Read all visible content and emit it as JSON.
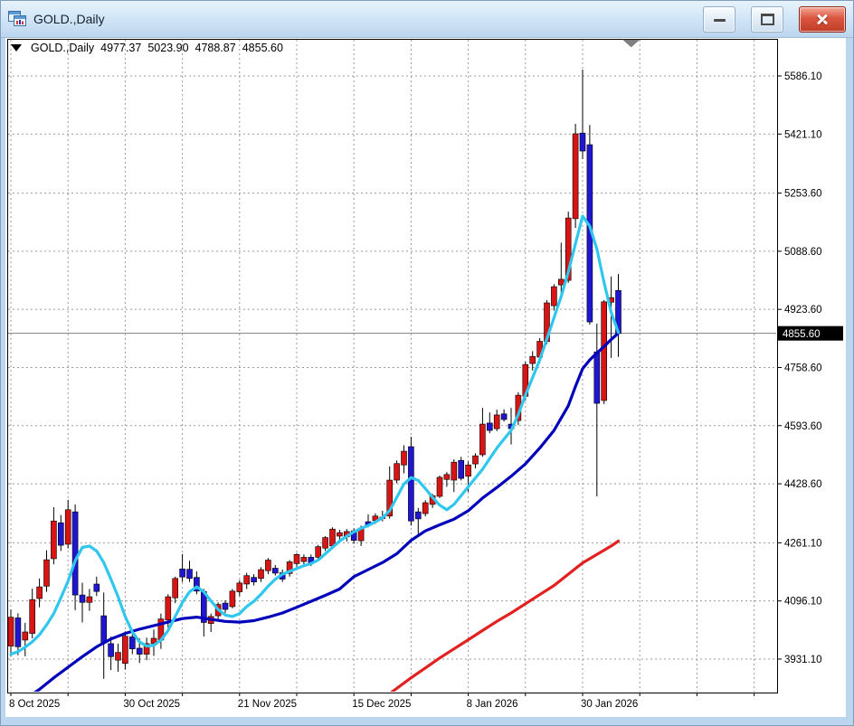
{
  "window": {
    "title": "GOLD.,Daily"
  },
  "header": {
    "symbol_period": "GOLD.,Daily",
    "open": "4977.37",
    "high": "5023.90",
    "low": "4788.87",
    "close": "4855.60"
  },
  "price_axis": {
    "labels": [
      "5586.10",
      "5421.10",
      "5253.60",
      "5088.60",
      "4923.60",
      "4758.60",
      "4593.60",
      "4428.60",
      "4261.10",
      "4096.10",
      "3931.10"
    ],
    "current_price_label": "4855.60"
  },
  "time_axis": {
    "labels": [
      "8 Oct 2025",
      "30 Oct 2025",
      "21 Nov 2025",
      "15 Dec 2025",
      "8 Jan 2026",
      "30 Jan 2026"
    ]
  },
  "chart_data": {
    "type": "candlestick",
    "symbol": "GOLD.",
    "timeframe": "Daily",
    "title": "GOLD.,Daily",
    "current_price": 4855.6,
    "last_bar": {
      "open": 4977.37,
      "high": 5023.9,
      "low": 4788.87,
      "close": 4855.6
    },
    "visible_price_range": [
      3836,
      5691
    ],
    "y_axis_ticks": [
      5586.1,
      5421.1,
      5253.6,
      5088.6,
      4923.6,
      4758.6,
      4593.6,
      4428.6,
      4261.1,
      4096.1,
      3931.1
    ],
    "x_axis_dates": [
      "8 Oct 2025",
      "30 Oct 2025",
      "21 Nov 2025",
      "15 Dec 2025",
      "8 Jan 2026",
      "30 Jan 2026"
    ],
    "date_bar_indices": [
      0,
      16,
      32,
      48,
      64,
      80
    ],
    "grid_bar_step": 8,
    "bars": [
      [
        3968,
        4072,
        3938,
        4050
      ],
      [
        4048,
        4061,
        3942,
        3966
      ],
      [
        3985,
        4034,
        3939,
        4008
      ],
      [
        4004,
        4131,
        3990,
        4100
      ],
      [
        4103,
        4160,
        4078,
        4136
      ],
      [
        4138,
        4240,
        4122,
        4213
      ],
      [
        4216,
        4362,
        4200,
        4323
      ],
      [
        4318,
        4340,
        4238,
        4254
      ],
      [
        4257,
        4383,
        4245,
        4355
      ],
      [
        4349,
        4370,
        4070,
        4113
      ],
      [
        4113,
        4148,
        4035,
        4092
      ],
      [
        4092,
        4130,
        4068,
        4108
      ],
      [
        4144,
        4165,
        4110,
        4123
      ],
      [
        4054,
        4120,
        3875,
        3977
      ],
      [
        3975,
        3995,
        3900,
        3938
      ],
      [
        3928,
        3975,
        3895,
        3950
      ],
      [
        3919,
        4010,
        3902,
        3996
      ],
      [
        3994,
        4008,
        3945,
        3960
      ],
      [
        3962,
        3990,
        3920,
        3945
      ],
      [
        3945,
        3992,
        3928,
        3975
      ],
      [
        3975,
        4015,
        3940,
        3990
      ],
      [
        3985,
        4060,
        3960,
        4045
      ],
      [
        4042,
        4115,
        4020,
        4108
      ],
      [
        4105,
        4165,
        4090,
        4160
      ],
      [
        4187,
        4229,
        4150,
        4164
      ],
      [
        4186,
        4210,
        4150,
        4160
      ],
      [
        4163,
        4180,
        4115,
        4124
      ],
      [
        4123,
        4130,
        3995,
        4035
      ],
      [
        4032,
        4060,
        4008,
        4052
      ],
      [
        4054,
        4092,
        4040,
        4086
      ],
      [
        4090,
        4098,
        4062,
        4072
      ],
      [
        4080,
        4130,
        4075,
        4124
      ],
      [
        4122,
        4155,
        4110,
        4147
      ],
      [
        4144,
        4176,
        4130,
        4168
      ],
      [
        4163,
        4172,
        4140,
        4150
      ],
      [
        4160,
        4192,
        4150,
        4185
      ],
      [
        4182,
        4218,
        4172,
        4212
      ],
      [
        4189,
        4198,
        4168,
        4175
      ],
      [
        4176,
        4185,
        4150,
        4158
      ],
      [
        4174,
        4212,
        4165,
        4207
      ],
      [
        4202,
        4232,
        4192,
        4228
      ],
      [
        4208,
        4228,
        4198,
        4220
      ],
      [
        4220,
        4228,
        4195,
        4204
      ],
      [
        4220,
        4255,
        4210,
        4250
      ],
      [
        4246,
        4280,
        4238,
        4276
      ],
      [
        4252,
        4305,
        4248,
        4300
      ],
      [
        4280,
        4298,
        4270,
        4290
      ],
      [
        4278,
        4300,
        4265,
        4293
      ],
      [
        4295,
        4302,
        4258,
        4268
      ],
      [
        4267,
        4310,
        4252,
        4303
      ],
      [
        4321,
        4342,
        4305,
        4311
      ],
      [
        4324,
        4345,
        4315,
        4337
      ],
      [
        4330,
        4352,
        4322,
        4334
      ],
      [
        4337,
        4478,
        4330,
        4439
      ],
      [
        4439,
        4495,
        4430,
        4486
      ],
      [
        4482,
        4538,
        4458,
        4521
      ],
      [
        4534,
        4562,
        4310,
        4323
      ],
      [
        4349,
        4360,
        4285,
        4329
      ],
      [
        4344,
        4382,
        4336,
        4375
      ],
      [
        4370,
        4400,
        4360,
        4395
      ],
      [
        4393,
        4452,
        4388,
        4447
      ],
      [
        4441,
        4462,
        4420,
        4455
      ],
      [
        4439,
        4498,
        4405,
        4490
      ],
      [
        4495,
        4505,
        4438,
        4444
      ],
      [
        4450,
        4492,
        4406,
        4482
      ],
      [
        4485,
        4515,
        4472,
        4508
      ],
      [
        4511,
        4644,
        4505,
        4598
      ],
      [
        4601,
        4631,
        4572,
        4580
      ],
      [
        4585,
        4639,
        4578,
        4624
      ],
      [
        4627,
        4640,
        4605,
        4611
      ],
      [
        4598,
        4644,
        4540,
        4585
      ],
      [
        4608,
        4688,
        4595,
        4680
      ],
      [
        4677,
        4775,
        4665,
        4767
      ],
      [
        4770,
        4805,
        4750,
        4790
      ],
      [
        4788,
        4842,
        4770,
        4833
      ],
      [
        4832,
        4950,
        4825,
        4942
      ],
      [
        4934,
        4995,
        4920,
        4988
      ],
      [
        4993,
        5113,
        4955,
        5009
      ],
      [
        5006,
        5201,
        4999,
        5183
      ],
      [
        5181,
        5450,
        5155,
        5422
      ],
      [
        5424,
        5604,
        5350,
        5373
      ],
      [
        5391,
        5447,
        4880,
        4888
      ],
      [
        4803,
        4883,
        4393,
        4657
      ],
      [
        4665,
        4950,
        4655,
        4945
      ],
      [
        4944,
        5017,
        4786,
        4957
      ],
      [
        4977.37,
        5023.9,
        4788.87,
        4855.6
      ]
    ],
    "overlays": [
      {
        "name": "fast-ma",
        "color": "#2fc7ee",
        "width": 3.2,
        "points": [
          [
            0,
            3945
          ],
          [
            1,
            3952
          ],
          [
            2,
            3965
          ],
          [
            3,
            3980
          ],
          [
            4,
            4000
          ],
          [
            5,
            4028
          ],
          [
            6,
            4060
          ],
          [
            7,
            4105
          ],
          [
            8,
            4152
          ],
          [
            9,
            4210
          ],
          [
            10,
            4248
          ],
          [
            11,
            4252
          ],
          [
            12,
            4238
          ],
          [
            13,
            4205
          ],
          [
            14,
            4158
          ],
          [
            15,
            4108
          ],
          [
            16,
            4052
          ],
          [
            17,
            4008
          ],
          [
            18,
            3980
          ],
          [
            19,
            3968
          ],
          [
            20,
            3970
          ],
          [
            21,
            3985
          ],
          [
            22,
            4012
          ],
          [
            23,
            4052
          ],
          [
            24,
            4092
          ],
          [
            25,
            4122
          ],
          [
            26,
            4136
          ],
          [
            27,
            4122
          ],
          [
            28,
            4096
          ],
          [
            29,
            4072
          ],
          [
            30,
            4056
          ],
          [
            31,
            4052
          ],
          [
            32,
            4060
          ],
          [
            33,
            4080
          ],
          [
            34,
            4095
          ],
          [
            35,
            4115
          ],
          [
            36,
            4138
          ],
          [
            37,
            4158
          ],
          [
            38,
            4172
          ],
          [
            39,
            4180
          ],
          [
            40,
            4188
          ],
          [
            41,
            4196
          ],
          [
            42,
            4202
          ],
          [
            43,
            4212
          ],
          [
            44,
            4230
          ],
          [
            45,
            4248
          ],
          [
            46,
            4266
          ],
          [
            47,
            4280
          ],
          [
            48,
            4292
          ],
          [
            49,
            4302
          ],
          [
            50,
            4310
          ],
          [
            51,
            4320
          ],
          [
            52,
            4332
          ],
          [
            53,
            4352
          ],
          [
            54,
            4390
          ],
          [
            55,
            4428
          ],
          [
            56,
            4446
          ],
          [
            57,
            4438
          ],
          [
            58,
            4415
          ],
          [
            59,
            4390
          ],
          [
            60,
            4368
          ],
          [
            61,
            4355
          ],
          [
            62,
            4370
          ],
          [
            63,
            4395
          ],
          [
            64,
            4420
          ],
          [
            65,
            4445
          ],
          [
            66,
            4470
          ],
          [
            67,
            4500
          ],
          [
            68,
            4530
          ],
          [
            69,
            4555
          ],
          [
            70,
            4580
          ],
          [
            71,
            4625
          ],
          [
            72,
            4680
          ],
          [
            73,
            4730
          ],
          [
            74,
            4780
          ],
          [
            75,
            4840
          ],
          [
            76,
            4900
          ],
          [
            77,
            4960
          ],
          [
            78,
            5030
          ],
          [
            79,
            5110
          ],
          [
            80,
            5188
          ],
          [
            81,
            5160
          ],
          [
            82,
            5095
          ],
          [
            83,
            5000
          ],
          [
            84,
            4915
          ],
          [
            85,
            4858
          ]
        ]
      },
      {
        "name": "medium-ma",
        "color": "#0000bb",
        "width": 3.2,
        "points": [
          [
            2,
            3818
          ],
          [
            4,
            3845
          ],
          [
            6,
            3878
          ],
          [
            8,
            3908
          ],
          [
            10,
            3938
          ],
          [
            12,
            3966
          ],
          [
            14,
            3988
          ],
          [
            16,
            4004
          ],
          [
            18,
            4016
          ],
          [
            20,
            4026
          ],
          [
            22,
            4036
          ],
          [
            24,
            4046
          ],
          [
            26,
            4050
          ],
          [
            28,
            4044
          ],
          [
            30,
            4038
          ],
          [
            32,
            4036
          ],
          [
            34,
            4040
          ],
          [
            36,
            4050
          ],
          [
            38,
            4062
          ],
          [
            40,
            4078
          ],
          [
            42,
            4095
          ],
          [
            44,
            4112
          ],
          [
            46,
            4130
          ],
          [
            48,
            4165
          ],
          [
            50,
            4185
          ],
          [
            52,
            4205
          ],
          [
            54,
            4230
          ],
          [
            56,
            4268
          ],
          [
            58,
            4295
          ],
          [
            60,
            4312
          ],
          [
            62,
            4328
          ],
          [
            64,
            4352
          ],
          [
            66,
            4388
          ],
          [
            68,
            4418
          ],
          [
            70,
            4450
          ],
          [
            72,
            4485
          ],
          [
            74,
            4530
          ],
          [
            76,
            4580
          ],
          [
            78,
            4650
          ],
          [
            79,
            4705
          ],
          [
            80,
            4755
          ],
          [
            81,
            4780
          ],
          [
            82,
            4800
          ],
          [
            83,
            4818
          ],
          [
            84,
            4838
          ],
          [
            85,
            4856
          ]
        ]
      },
      {
        "name": "slow-ma",
        "color": "#e32020",
        "width": 3.2,
        "points": [
          [
            52,
            3818
          ],
          [
            54,
            3848
          ],
          [
            56,
            3878
          ],
          [
            58,
            3906
          ],
          [
            60,
            3934
          ],
          [
            62,
            3960
          ],
          [
            64,
            3986
          ],
          [
            66,
            4012
          ],
          [
            68,
            4038
          ],
          [
            70,
            4062
          ],
          [
            72,
            4088
          ],
          [
            74,
            4114
          ],
          [
            76,
            4140
          ],
          [
            78,
            4172
          ],
          [
            80,
            4204
          ],
          [
            82,
            4228
          ],
          [
            84,
            4252
          ],
          [
            85,
            4266
          ]
        ]
      }
    ],
    "colors": {
      "bull": "#d91414",
      "bear": "#2016d2",
      "wick": "#000000",
      "grid": "#999999",
      "price_line": "#808080",
      "price_box_bg": "#000000",
      "price_box_text": "#ffffff",
      "background": "#ffffff"
    },
    "marker": {
      "shape": "down-triangle",
      "bar": 86.8,
      "color": "#808080"
    }
  }
}
